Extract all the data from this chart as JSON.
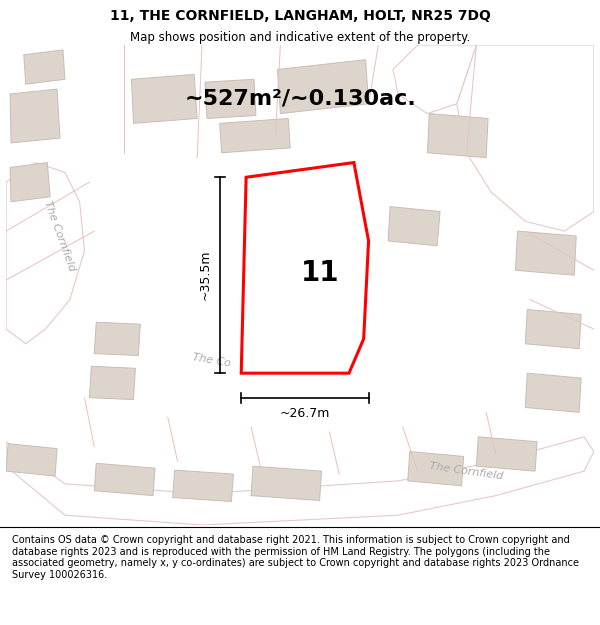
{
  "title": "11, THE CORNFIELD, LANGHAM, HOLT, NR25 7DQ",
  "subtitle": "Map shows position and indicative extent of the property.",
  "area_text": "~527m²/~0.130ac.",
  "plot_number": "11",
  "dim_width": "~26.7m",
  "dim_height": "~35.5m",
  "footer": "Contains OS data © Crown copyright and database right 2021. This information is subject to Crown copyright and database rights 2023 and is reproduced with the permission of HM Land Registry. The polygons (including the associated geometry, namely x, y co-ordinates) are subject to Crown copyright and database rights 2023 Ordnance Survey 100026316.",
  "bg_color": "#f2ede9",
  "road_fill": "#ffffff",
  "road_edge": "#e8c8c8",
  "building_fill": "#ddd5cc",
  "building_edge": "#c8bdb5",
  "plot_outline_color": "#ff0000",
  "plot_fill": "#ffffff",
  "arrow_color": "#000000",
  "title_fontsize": 10,
  "subtitle_fontsize": 8.5,
  "area_fontsize": 16,
  "plot_label_fontsize": 20,
  "dim_fontsize": 9,
  "footer_fontsize": 7,
  "road_label_color": "#aaaaaa",
  "road_label_fontsize": 8
}
